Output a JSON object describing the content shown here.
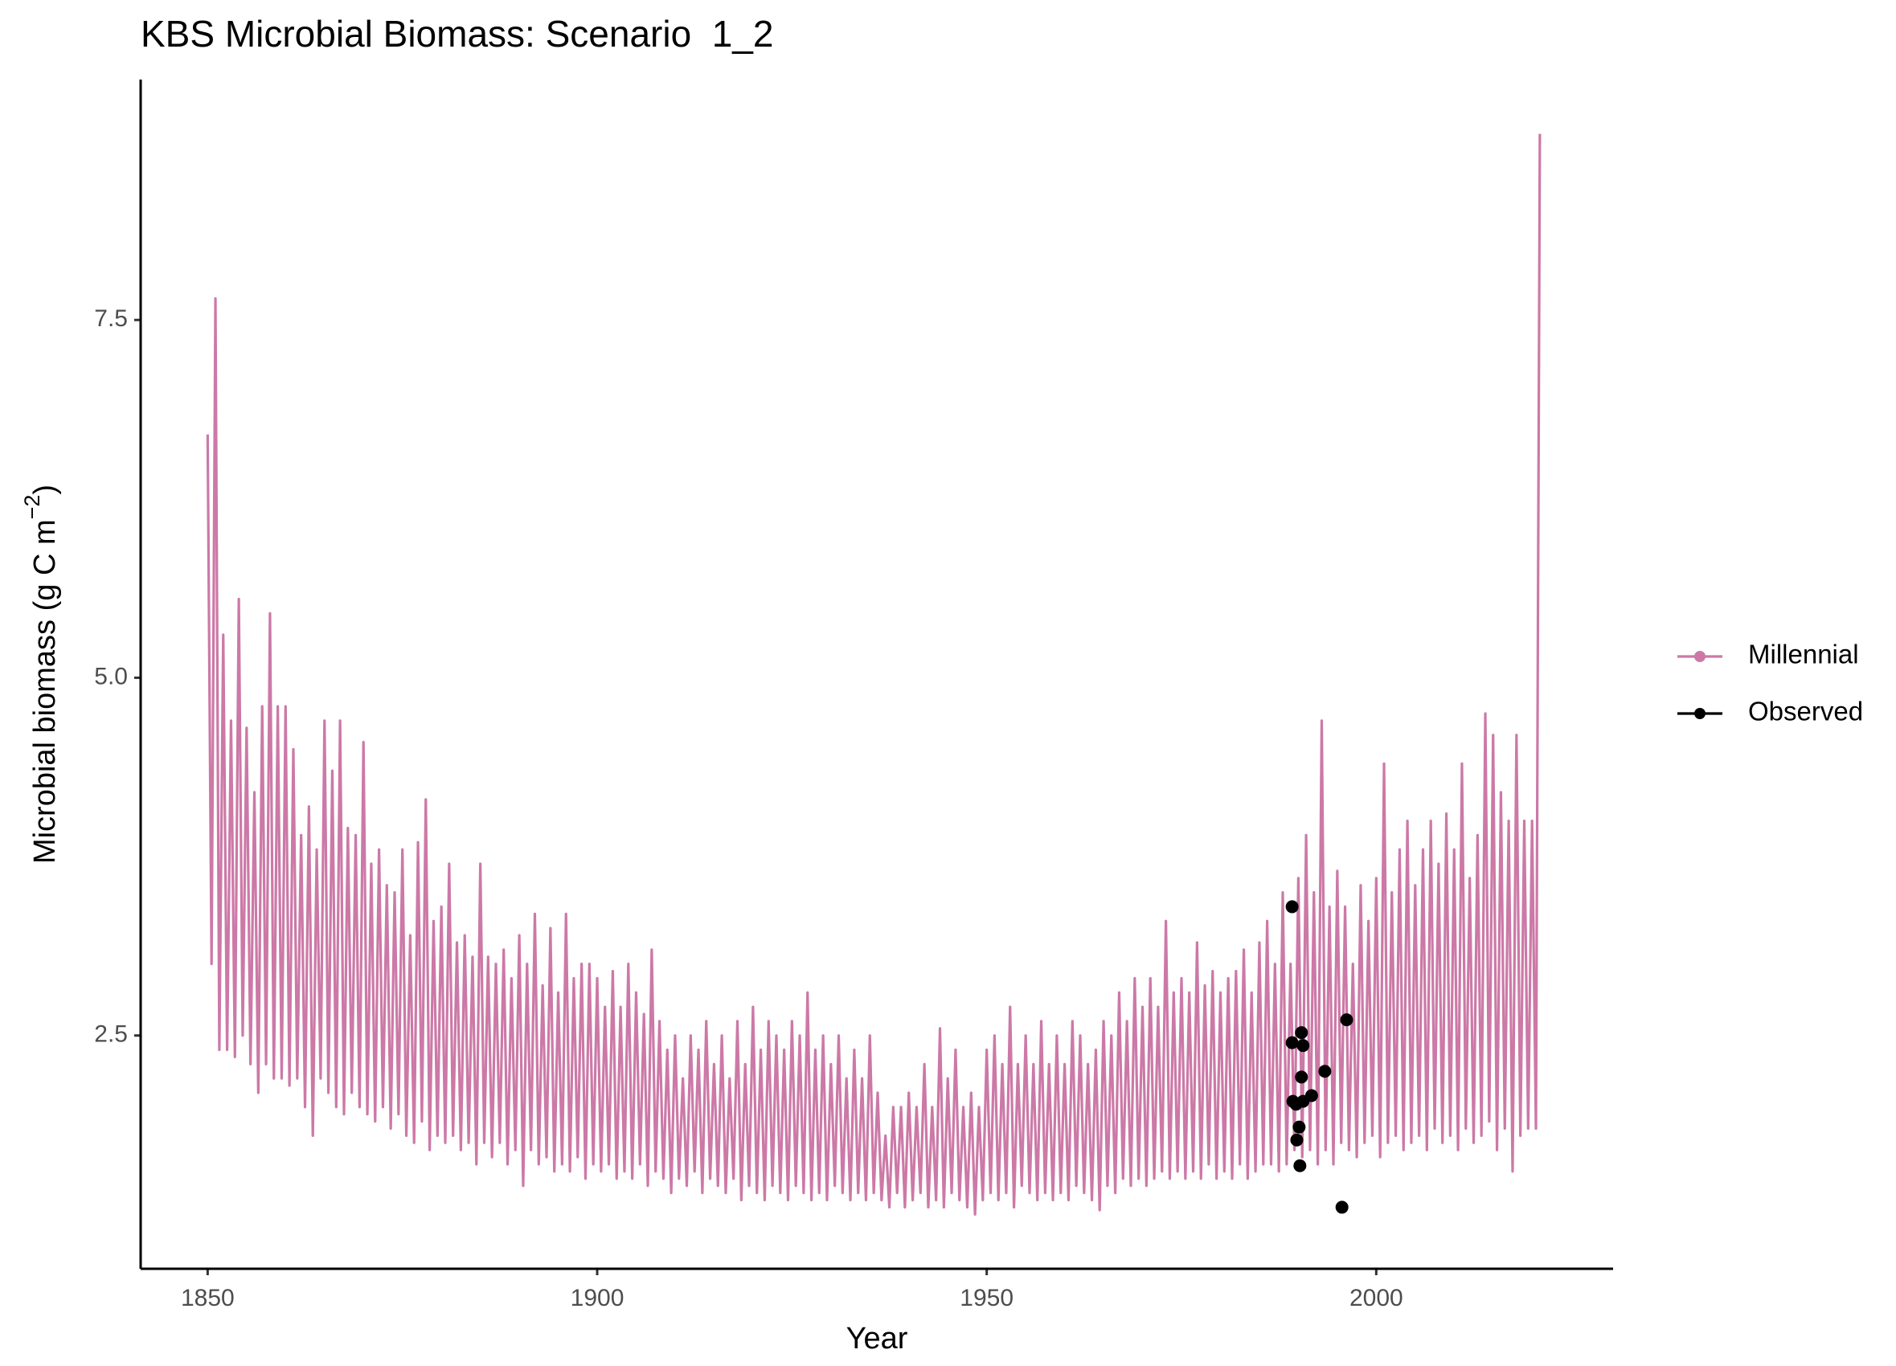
{
  "chart_data": {
    "type": "line",
    "title": "KBS Microbial Biomass: Scenario  1_2",
    "xlabel": "Year",
    "ylabel": [
      "Microbial biomass (g C m",
      "−2",
      ")"
    ],
    "xlim": [
      1841.4,
      2030.4
    ],
    "ylim": [
      0.87,
      9.18
    ],
    "xticks": [
      1850,
      1900,
      1950,
      2000
    ],
    "yticks": [
      2.5,
      {
        "value": 5,
        "label": "5.0"
      },
      7.5
    ],
    "grid": false,
    "legend": "right",
    "series": [
      {
        "name": "Millennial",
        "color": "#cc79a7",
        "type": "line",
        "x": [
          1850,
          1850.5,
          1851,
          1851.5,
          1852,
          1852.5,
          1853,
          1853.5,
          1854,
          1854.5,
          1855,
          1855.5,
          1856,
          1856.5,
          1857,
          1857.5,
          1858,
          1858.5,
          1859,
          1859.5,
          1860,
          1860.5,
          1861,
          1861.5,
          1862,
          1862.5,
          1863,
          1863.5,
          1864,
          1864.5,
          1865,
          1865.5,
          1866,
          1866.5,
          1867,
          1867.5,
          1868,
          1868.5,
          1869,
          1869.5,
          1870,
          1870.5,
          1871,
          1871.5,
          1872,
          1872.5,
          1873,
          1873.5,
          1874,
          1874.5,
          1875,
          1875.5,
          1876,
          1876.5,
          1877,
          1877.5,
          1878,
          1878.5,
          1879,
          1879.5,
          1880,
          1880.5,
          1881,
          1881.5,
          1882,
          1882.5,
          1883,
          1883.5,
          1884,
          1884.5,
          1885,
          1885.5,
          1886,
          1886.5,
          1887,
          1887.5,
          1888,
          1888.5,
          1889,
          1889.5,
          1890,
          1890.5,
          1891,
          1891.5,
          1892,
          1892.5,
          1893,
          1893.5,
          1894,
          1894.5,
          1895,
          1895.5,
          1896,
          1896.5,
          1897,
          1897.5,
          1898,
          1898.5,
          1899,
          1899.5,
          1900,
          1900.5,
          1901,
          1901.5,
          1902,
          1902.5,
          1903,
          1903.5,
          1904,
          1904.5,
          1905,
          1905.5,
          1906,
          1906.5,
          1907,
          1907.5,
          1908,
          1908.5,
          1909,
          1909.5,
          1910,
          1910.5,
          1911,
          1911.5,
          1912,
          1912.5,
          1913,
          1913.5,
          1914,
          1914.5,
          1915,
          1915.5,
          1916,
          1916.5,
          1917,
          1917.5,
          1918,
          1918.5,
          1919,
          1919.5,
          1920,
          1920.5,
          1921,
          1921.5,
          1922,
          1922.5,
          1923,
          1923.5,
          1924,
          1924.5,
          1925,
          1925.5,
          1926,
          1926.5,
          1927,
          1927.5,
          1928,
          1928.5,
          1929,
          1929.5,
          1930,
          1930.5,
          1931,
          1931.5,
          1932,
          1932.5,
          1933,
          1933.5,
          1934,
          1934.5,
          1935,
          1935.5,
          1936,
          1936.5,
          1937,
          1937.5,
          1938,
          1938.5,
          1939,
          1939.5,
          1940,
          1940.5,
          1941,
          1941.5,
          1942,
          1942.5,
          1943,
          1943.5,
          1944,
          1944.5,
          1945,
          1945.5,
          1946,
          1946.5,
          1947,
          1947.5,
          1948,
          1948.5,
          1949,
          1949.5,
          1950,
          1950.5,
          1951,
          1951.5,
          1952,
          1952.5,
          1953,
          1953.5,
          1954,
          1954.5,
          1955,
          1955.5,
          1956,
          1956.5,
          1957,
          1957.5,
          1958,
          1958.5,
          1959,
          1959.5,
          1960,
          1960.5,
          1961,
          1961.5,
          1962,
          1962.5,
          1963,
          1963.5,
          1964,
          1964.5,
          1965,
          1965.5,
          1966,
          1966.5,
          1967,
          1967.5,
          1968,
          1968.5,
          1969,
          1969.5,
          1970,
          1970.5,
          1971,
          1971.5,
          1972,
          1972.5,
          1973,
          1973.5,
          1974,
          1974.5,
          1975,
          1975.5,
          1976,
          1976.5,
          1977,
          1977.5,
          1978,
          1978.5,
          1979,
          1979.5,
          1980,
          1980.5,
          1981,
          1981.5,
          1982,
          1982.5,
          1983,
          1983.5,
          1984,
          1984.5,
          1985,
          1985.5,
          1986,
          1986.5,
          1987,
          1987.5,
          1988,
          1988.5,
          1989,
          1989.5,
          1990,
          1990.5,
          1991,
          1991.5,
          1992,
          1992.5,
          1993,
          1993.5,
          1994,
          1994.5,
          1995,
          1995.5,
          1996,
          1996.5,
          1997,
          1997.5,
          1998,
          1998.5,
          1999,
          1999.5,
          2000,
          2000.5,
          2001,
          2001.5,
          2002,
          2002.5,
          2003,
          2003.5,
          2004,
          2004.5,
          2005,
          2005.5,
          2006,
          2006.5,
          2007,
          2007.5,
          2008,
          2008.5,
          2009,
          2009.5,
          2010,
          2010.5,
          2011,
          2011.5,
          2012,
          2012.5,
          2013,
          2013.5,
          2014,
          2014.5,
          2015,
          2015.5,
          2016,
          2016.5,
          2017,
          2017.5,
          2018,
          2018.5,
          2019,
          2019.5,
          2020,
          2020.5,
          2021
        ],
        "values": [
          6.7,
          3.0,
          7.65,
          2.4,
          5.3,
          2.4,
          4.7,
          2.35,
          5.55,
          2.5,
          4.65,
          2.3,
          4.2,
          2.1,
          4.8,
          2.3,
          5.45,
          2.2,
          4.8,
          2.2,
          4.8,
          2.15,
          4.5,
          2.2,
          3.9,
          2.0,
          4.1,
          1.8,
          3.8,
          2.2,
          4.7,
          2.1,
          4.35,
          2.0,
          4.7,
          1.95,
          3.95,
          2.1,
          3.9,
          2.0,
          4.55,
          1.95,
          3.7,
          1.9,
          3.8,
          2.0,
          3.55,
          1.85,
          3.5,
          1.95,
          3.8,
          1.8,
          3.2,
          1.75,
          3.85,
          1.9,
          4.15,
          1.7,
          3.3,
          1.8,
          3.4,
          1.75,
          3.7,
          1.8,
          3.15,
          1.7,
          3.2,
          1.75,
          3.05,
          1.6,
          3.7,
          1.75,
          3.05,
          1.65,
          3.0,
          1.75,
          3.1,
          1.6,
          2.9,
          1.7,
          3.2,
          1.45,
          3.0,
          1.7,
          3.35,
          1.6,
          2.85,
          1.65,
          3.25,
          1.55,
          2.8,
          1.6,
          3.35,
          1.55,
          2.9,
          1.65,
          3.0,
          1.5,
          3.0,
          1.6,
          2.9,
          1.55,
          2.7,
          1.6,
          2.95,
          1.5,
          2.7,
          1.55,
          3.0,
          1.5,
          2.8,
          1.6,
          2.65,
          1.45,
          3.1,
          1.55,
          2.6,
          1.5,
          2.4,
          1.4,
          2.5,
          1.5,
          2.2,
          1.45,
          2.5,
          1.55,
          2.4,
          1.4,
          2.6,
          1.5,
          2.3,
          1.45,
          2.5,
          1.4,
          2.2,
          1.5,
          2.6,
          1.35,
          2.3,
          1.45,
          2.7,
          1.4,
          2.4,
          1.35,
          2.6,
          1.45,
          2.5,
          1.4,
          2.4,
          1.35,
          2.6,
          1.45,
          2.5,
          1.4,
          2.8,
          1.35,
          2.4,
          1.4,
          2.5,
          1.35,
          2.3,
          1.45,
          2.5,
          1.4,
          2.2,
          1.35,
          2.4,
          1.4,
          2.2,
          1.35,
          2.5,
          1.4,
          2.1,
          1.35,
          1.8,
          1.3,
          2.0,
          1.4,
          2.0,
          1.3,
          2.1,
          1.35,
          2.0,
          1.4,
          2.3,
          1.3,
          2.0,
          1.35,
          2.55,
          1.3,
          2.2,
          1.4,
          2.4,
          1.35,
          2.0,
          1.3,
          2.1,
          1.25,
          2.0,
          1.35,
          2.4,
          1.4,
          2.5,
          1.35,
          2.3,
          1.4,
          2.7,
          1.3,
          2.3,
          1.45,
          2.5,
          1.4,
          2.3,
          1.35,
          2.6,
          1.4,
          2.3,
          1.35,
          2.5,
          1.4,
          2.3,
          1.35,
          2.6,
          1.45,
          2.5,
          1.4,
          2.3,
          1.35,
          2.4,
          1.28,
          2.6,
          1.45,
          2.5,
          1.4,
          2.8,
          1.5,
          2.6,
          1.45,
          2.9,
          1.5,
          2.7,
          1.45,
          2.9,
          1.5,
          2.7,
          1.55,
          3.3,
          1.5,
          2.8,
          1.55,
          2.9,
          1.5,
          2.8,
          1.55,
          3.15,
          1.5,
          2.85,
          1.6,
          2.95,
          1.5,
          2.8,
          1.55,
          2.9,
          1.5,
          2.95,
          1.6,
          3.1,
          1.5,
          2.8,
          1.55,
          3.15,
          1.6,
          3.3,
          1.6,
          3.0,
          1.55,
          3.5,
          1.6,
          3.0,
          1.7,
          3.6,
          1.65,
          3.9,
          1.7,
          3.5,
          1.6,
          4.7,
          1.7,
          3.4,
          1.6,
          3.65,
          1.75,
          3.4,
          1.7,
          3.0,
          1.65,
          3.55,
          1.75,
          3.3,
          1.8,
          3.6,
          1.65,
          4.4,
          1.75,
          3.5,
          1.8,
          3.8,
          1.7,
          4.0,
          1.75,
          3.55,
          1.8,
          3.8,
          1.7,
          4.0,
          1.85,
          3.7,
          1.75,
          4.05,
          1.8,
          3.8,
          1.7,
          4.4,
          1.85,
          3.6,
          1.75,
          3.9,
          1.8,
          4.75,
          1.9,
          4.6,
          1.7,
          4.2,
          1.85,
          4.0,
          1.55,
          4.6,
          1.8,
          4.0,
          1.85,
          4.0,
          1.85,
          8.8
        ]
      },
      {
        "name": "Observed",
        "color": "#000000",
        "type": "scatter",
        "x": [
          1989.2,
          1989.2,
          1990.4,
          1990.6,
          1996.2,
          1993.4,
          1990.4,
          1989.3,
          1989.7,
          1991.7,
          1990.6,
          1990.1,
          1989.8,
          1990.2,
          1995.6
        ],
        "values": [
          3.4,
          2.45,
          2.52,
          2.43,
          2.61,
          2.25,
          2.21,
          2.04,
          2.02,
          2.08,
          2.04,
          1.86,
          1.77,
          1.59,
          1.3
        ]
      }
    ]
  }
}
